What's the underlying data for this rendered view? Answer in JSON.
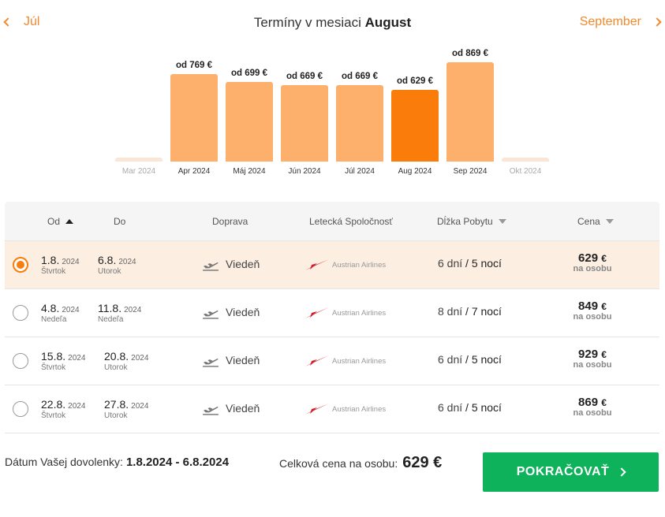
{
  "nav": {
    "prev_label": "Júl",
    "next_label": "September",
    "title_prefix": "Termíny v mesiaci",
    "title_month": "August"
  },
  "chart_data": {
    "type": "bar",
    "categories": [
      "Mar 2024",
      "Apr 2024",
      "Máj 2024",
      "Jún 2024",
      "Júl 2024",
      "Aug 2024",
      "Sep 2024",
      "Okt 2024"
    ],
    "values": [
      null,
      769,
      699,
      669,
      669,
      629,
      869,
      null
    ],
    "value_labels": [
      "",
      "od 769 €",
      "od 699 €",
      "od 669 €",
      "od 669 €",
      "od 629 €",
      "od 869 €",
      ""
    ],
    "active": "Aug 2024",
    "unit": "€",
    "colors": {
      "bar": "#fdaf6c",
      "active": "#fa7c0a",
      "empty": "#fbe6d6"
    }
  },
  "table": {
    "headers": {
      "from": "Od",
      "to": "Do",
      "transport": "Doprava",
      "airline": "Letecká Spoločnosť",
      "stay": "Dĺžka Pobytu",
      "price": "Cena"
    },
    "rows": [
      {
        "from_d": "1.8.",
        "from_y": "2024",
        "from_wd": "Štvrtok",
        "to_d": "6.8.",
        "to_y": "2024",
        "to_wd": "Utorok",
        "transport": "Viedeň",
        "airline": "Austrian Airlines",
        "days": "6 dní",
        "sep": "/",
        "nights": "5 nocí",
        "price": "629",
        "currency": "€",
        "per": "na osobu",
        "selected": true
      },
      {
        "from_d": "4.8.",
        "from_y": "2024",
        "from_wd": "Nedeľa",
        "to_d": "11.8.",
        "to_y": "2024",
        "to_wd": "Nedeľa",
        "transport": "Viedeň",
        "airline": "Austrian Airlines",
        "days": "8 dní",
        "sep": "/",
        "nights": "7 nocí",
        "price": "849",
        "currency": "€",
        "per": "na osobu",
        "selected": false
      },
      {
        "from_d": "15.8.",
        "from_y": "2024",
        "from_wd": "Štvrtok",
        "to_d": "20.8.",
        "to_y": "2024",
        "to_wd": "Utorok",
        "transport": "Viedeň",
        "airline": "Austrian Airlines",
        "days": "6 dní",
        "sep": "/",
        "nights": "5 nocí",
        "price": "929",
        "currency": "€",
        "per": "na osobu",
        "selected": false
      },
      {
        "from_d": "22.8.",
        "from_y": "2024",
        "from_wd": "Štvrtok",
        "to_d": "27.8.",
        "to_y": "2024",
        "to_wd": "Utorok",
        "transport": "Viedeň",
        "airline": "Austrian Airlines",
        "days": "6 dní",
        "sep": "/",
        "nights": "5 nocí",
        "price": "869",
        "currency": "€",
        "per": "na osobu",
        "selected": false
      }
    ]
  },
  "footer": {
    "date_label": "Dátum Vašej dovolenky:",
    "date_value": "1.8.2024 - 6.8.2024",
    "total_label": "Celková cena na osobu:",
    "total_value": "629 €",
    "cta_label": "POKRAČOVAŤ"
  }
}
